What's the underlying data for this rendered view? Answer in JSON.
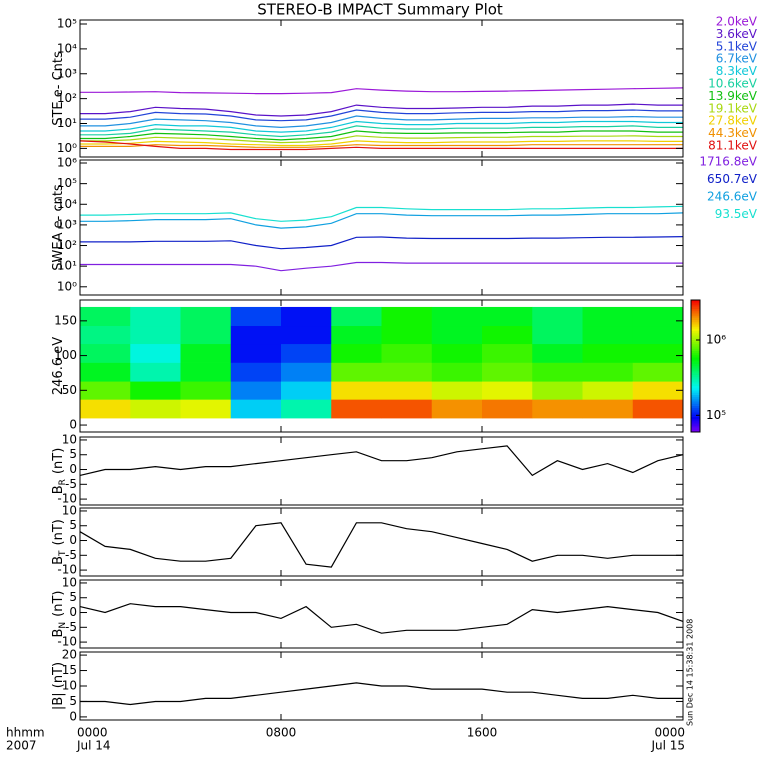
{
  "title": "STEREO-B IMPACT Summary Plot",
  "x_label": "hhmm",
  "year": "2007",
  "timestamp": "Sun Dec 14 15:38:31 2008",
  "xlim": [
    0,
    24
  ],
  "xticks": [
    {
      "value": 0,
      "label": "0000"
    },
    {
      "value": 8,
      "label": "0800"
    },
    {
      "value": 16,
      "label": "1600"
    },
    {
      "value": 24,
      "label": "0000"
    }
  ],
  "xtick_dates": [
    {
      "value": 0,
      "label": "Jul 14"
    },
    {
      "value": 24,
      "label": "Jul 15"
    }
  ],
  "chart_data": [
    {
      "type": "line",
      "ylabel": "STE e- Cnts",
      "log_scale": true,
      "legend": true,
      "ylim": [
        0.45,
        145000
      ],
      "yticks": [
        {
          "value": 1,
          "label": "10⁰"
        },
        {
          "value": 10,
          "label": "10¹"
        },
        {
          "value": 100,
          "label": "10²"
        },
        {
          "value": 1000,
          "label": "10³"
        },
        {
          "value": 10000,
          "label": "10⁴"
        },
        {
          "value": 100000,
          "label": "10⁵"
        }
      ],
      "x": [
        0,
        1,
        2,
        3,
        4,
        5,
        6,
        7,
        8,
        9,
        10,
        11,
        12,
        13,
        14,
        15,
        16,
        17,
        18,
        19,
        20,
        21,
        22,
        23,
        24
      ],
      "series": [
        {
          "name": "2.0keV",
          "color": "#9a18d8",
          "values": [
            180,
            180,
            185,
            190,
            175,
            170,
            165,
            160,
            160,
            165,
            175,
            250,
            220,
            200,
            190,
            190,
            195,
            200,
            210,
            220,
            230,
            240,
            250,
            260,
            270
          ]
        },
        {
          "name": "3.6keV",
          "color": "#5a12c8",
          "values": [
            25,
            25,
            30,
            45,
            40,
            38,
            30,
            22,
            20,
            22,
            30,
            55,
            45,
            40,
            40,
            42,
            45,
            45,
            50,
            50,
            55,
            55,
            60,
            55,
            55
          ]
        },
        {
          "name": "5.1keV",
          "color": "#2244d8",
          "values": [
            15,
            15,
            18,
            28,
            25,
            24,
            20,
            14,
            13,
            14,
            20,
            35,
            28,
            25,
            25,
            27,
            28,
            28,
            30,
            30,
            33,
            33,
            35,
            32,
            32
          ]
        },
        {
          "name": "6.7keV",
          "color": "#2090e0",
          "values": [
            8,
            8,
            10,
            15,
            14,
            13,
            11,
            8,
            7,
            8,
            11,
            20,
            16,
            14,
            14,
            15,
            16,
            16,
            17,
            17,
            18,
            18,
            19,
            18,
            18
          ]
        },
        {
          "name": "8.3keV",
          "color": "#10c8d8",
          "values": [
            5,
            5,
            6,
            9,
            8,
            8,
            7,
            5,
            4.5,
            5,
            7,
            12,
            10,
            9,
            9,
            10,
            10,
            10,
            11,
            11,
            12,
            12,
            12,
            11,
            11
          ]
        },
        {
          "name": "10.6keV",
          "color": "#18d0a0",
          "values": [
            3.5,
            3.5,
            4,
            6,
            5.5,
            5,
            4.5,
            3.5,
            3,
            3.5,
            4.5,
            8,
            6.5,
            6,
            6,
            6.5,
            6.5,
            6.5,
            7,
            7,
            7.5,
            7.5,
            8,
            7,
            7
          ]
        },
        {
          "name": "13.9keV",
          "color": "#10c010",
          "values": [
            2.5,
            2.5,
            3,
            4,
            3.8,
            3.5,
            3,
            2.5,
            2.2,
            2.5,
            3,
            5,
            4.2,
            4,
            4,
            4.2,
            4.2,
            4.3,
            4.5,
            4.5,
            5,
            5,
            5,
            4.5,
            4.5
          ]
        },
        {
          "name": "19.1keV",
          "color": "#a8d810",
          "values": [
            2,
            2,
            2.2,
            2.8,
            2.6,
            2.5,
            2.2,
            1.9,
            1.7,
            1.8,
            2.1,
            3.2,
            2.8,
            2.6,
            2.6,
            2.7,
            2.8,
            2.8,
            3,
            3,
            3.1,
            3.1,
            3.2,
            3,
            3
          ]
        },
        {
          "name": "27.8keV",
          "color": "#f0d000",
          "values": [
            1.5,
            1.5,
            1.6,
            1.9,
            1.8,
            1.7,
            1.5,
            1.4,
            1.3,
            1.3,
            1.5,
            2,
            1.8,
            1.7,
            1.7,
            1.8,
            1.8,
            1.8,
            1.9,
            1.9,
            2,
            2,
            2,
            1.9,
            1.9
          ]
        },
        {
          "name": "44.3keV",
          "color": "#f09000",
          "values": [
            1.2,
            1.2,
            1.2,
            1.4,
            1.3,
            1.3,
            1.2,
            1.1,
            1.1,
            1.1,
            1.2,
            1.4,
            1.3,
            1.3,
            1.3,
            1.3,
            1.3,
            1.3,
            1.4,
            1.4,
            1.4,
            1.4,
            1.4,
            1.4,
            1.4
          ]
        },
        {
          "name": "81.1keV",
          "color": "#e01010",
          "values": [
            2,
            1.8,
            1.5,
            1.2,
            1,
            1,
            0.9,
            0.9,
            0.9,
            0.9,
            1,
            1.1,
            1,
            1,
            1,
            1,
            1,
            1,
            1,
            1,
            1,
            1,
            1,
            1,
            1
          ]
        }
      ]
    },
    {
      "type": "line",
      "ylabel": "SWEA e- cnts",
      "log_scale": true,
      "legend": true,
      "ylim": [
        0.4,
        1400000
      ],
      "yticks": [
        {
          "value": 1,
          "label": "10⁰"
        },
        {
          "value": 10,
          "label": "10¹"
        },
        {
          "value": 100,
          "label": "10²"
        },
        {
          "value": 1000,
          "label": "10³"
        },
        {
          "value": 10000,
          "label": "10⁴"
        },
        {
          "value": 100000,
          "label": "10⁵"
        },
        {
          "value": 1000000,
          "label": "10⁶"
        }
      ],
      "x": [
        0,
        1,
        2,
        3,
        4,
        5,
        6,
        7,
        8,
        9,
        10,
        11,
        12,
        13,
        14,
        15,
        16,
        17,
        18,
        19,
        20,
        21,
        22,
        23,
        24
      ],
      "series": [
        {
          "name": "1716.8eV",
          "color": "#8020e0",
          "values": [
            12,
            12,
            12,
            12,
            12,
            12,
            12,
            10,
            6,
            8,
            10,
            15,
            15,
            14,
            14,
            14,
            14,
            14,
            14,
            14,
            14,
            14,
            14,
            14,
            14
          ]
        },
        {
          "name": "650.7eV",
          "color": "#1020c8",
          "values": [
            150,
            150,
            150,
            160,
            160,
            160,
            170,
            100,
            70,
            80,
            100,
            250,
            260,
            230,
            220,
            220,
            220,
            220,
            230,
            230,
            240,
            250,
            250,
            260,
            270
          ]
        },
        {
          "name": "246.6eV",
          "color": "#10a0e0",
          "values": [
            1500,
            1500,
            1600,
            1800,
            1800,
            1800,
            2000,
            1000,
            700,
            800,
            1200,
            3500,
            3500,
            3000,
            2800,
            2800,
            2800,
            2800,
            3000,
            3000,
            3200,
            3500,
            3500,
            3500,
            3800
          ]
        },
        {
          "name": "93.5eV",
          "color": "#18e0d0",
          "values": [
            3000,
            3000,
            3200,
            3500,
            3500,
            3500,
            3800,
            2000,
            1500,
            1700,
            2500,
            7000,
            7000,
            6000,
            5500,
            5500,
            5500,
            5500,
            6000,
            6000,
            6500,
            7000,
            7000,
            7500,
            8000
          ]
        }
      ]
    },
    {
      "type": "heatmap",
      "ylabel": "246.6 eV",
      "ylim": [
        -10,
        180
      ],
      "yticks": [
        0,
        50,
        100,
        150
      ],
      "xbins": [
        0,
        2,
        4,
        6,
        8,
        10,
        12,
        14,
        16,
        18,
        20,
        22,
        24
      ],
      "ybins": [
        10,
        37,
        63,
        90,
        117,
        143,
        170
      ],
      "clim": [
        60000,
        3400000
      ],
      "cticks": [
        {
          "value": 100000,
          "label": "10⁵"
        },
        {
          "value": 1000000,
          "label": "10⁶"
        }
      ],
      "z": [
        [
          1500000,
          800000,
          500000,
          400000,
          350000,
          400000
        ],
        [
          1200000,
          600000,
          300000,
          250000,
          300000,
          300000
        ],
        [
          1300000,
          700000,
          500000,
          500000,
          400000,
          400000
        ],
        [
          200000,
          150000,
          120000,
          100000,
          100000,
          120000
        ],
        [
          300000,
          200000,
          150000,
          120000,
          100000,
          100000
        ],
        [
          2500000,
          1500000,
          800000,
          600000,
          500000,
          400000
        ],
        [
          2500000,
          1500000,
          800000,
          700000,
          600000,
          600000
        ],
        [
          2000000,
          1200000,
          700000,
          600000,
          500000,
          500000
        ],
        [
          2200000,
          1300000,
          800000,
          700000,
          600000,
          500000
        ],
        [
          2000000,
          1000000,
          700000,
          500000,
          400000,
          400000
        ],
        [
          2000000,
          1200000,
          700000,
          600000,
          500000,
          500000
        ],
        [
          2500000,
          1500000,
          800000,
          600000,
          500000,
          500000
        ]
      ]
    },
    {
      "type": "line",
      "ylabel": "B",
      "ylabel_sub": "R",
      "ylabel_unit": "(nT)",
      "ylim": [
        -12,
        11
      ],
      "yticks": [
        -10,
        -5,
        0,
        5,
        10
      ],
      "x": [
        0,
        1,
        2,
        3,
        4,
        5,
        6,
        7,
        8,
        9,
        10,
        11,
        12,
        13,
        14,
        15,
        16,
        17,
        18,
        19,
        20,
        21,
        22,
        23,
        24
      ],
      "series": [
        {
          "color": "#000000",
          "values": [
            -2,
            0,
            0,
            1,
            0,
            1,
            1,
            2,
            3,
            4,
            5,
            6,
            3,
            3,
            4,
            6,
            7,
            8,
            -2,
            3,
            0,
            2,
            -1,
            3,
            5
          ]
        }
      ]
    },
    {
      "type": "line",
      "ylabel": "B",
      "ylabel_sub": "T",
      "ylabel_unit": "(nT)",
      "ylim": [
        -12,
        11
      ],
      "yticks": [
        -10,
        -5,
        0,
        5,
        10
      ],
      "x": [
        0,
        1,
        2,
        3,
        4,
        5,
        6,
        7,
        8,
        9,
        10,
        11,
        12,
        13,
        14,
        15,
        16,
        17,
        18,
        19,
        20,
        21,
        22,
        23,
        24
      ],
      "series": [
        {
          "color": "#000000",
          "values": [
            3,
            -2,
            -3,
            -6,
            -7,
            -7,
            -6,
            5,
            6,
            -8,
            -9,
            6,
            6,
            4,
            3,
            1,
            -1,
            -3,
            -7,
            -5,
            -5,
            -6,
            -5,
            -5,
            -5
          ]
        }
      ]
    },
    {
      "type": "line",
      "ylabel": "B",
      "ylabel_sub": "N",
      "ylabel_unit": "(nT)",
      "ylim": [
        -12,
        11
      ],
      "yticks": [
        -10,
        -5,
        0,
        5,
        10
      ],
      "x": [
        0,
        1,
        2,
        3,
        4,
        5,
        6,
        7,
        8,
        9,
        10,
        11,
        12,
        13,
        14,
        15,
        16,
        17,
        18,
        19,
        20,
        21,
        22,
        23,
        24
      ],
      "series": [
        {
          "color": "#000000",
          "values": [
            2,
            0,
            3,
            2,
            2,
            1,
            0,
            0,
            -2,
            2,
            -5,
            -4,
            -7,
            -6,
            -6,
            -6,
            -5,
            -4,
            1,
            0,
            1,
            2,
            1,
            0,
            -3
          ]
        }
      ]
    },
    {
      "type": "line",
      "ylabel": "|B| (nT)",
      "ylim": [
        -1,
        21
      ],
      "yticks": [
        0,
        5,
        10,
        15,
        20
      ],
      "x": [
        0,
        1,
        2,
        3,
        4,
        5,
        6,
        7,
        8,
        9,
        10,
        11,
        12,
        13,
        14,
        15,
        16,
        17,
        18,
        19,
        20,
        21,
        22,
        23,
        24
      ],
      "series": [
        {
          "color": "#000000",
          "values": [
            5,
            5,
            4,
            5,
            5,
            6,
            6,
            7,
            8,
            9,
            10,
            11,
            10,
            10,
            9,
            9,
            9,
            8,
            8,
            7,
            6,
            6,
            7,
            6,
            6
          ]
        }
      ]
    }
  ]
}
